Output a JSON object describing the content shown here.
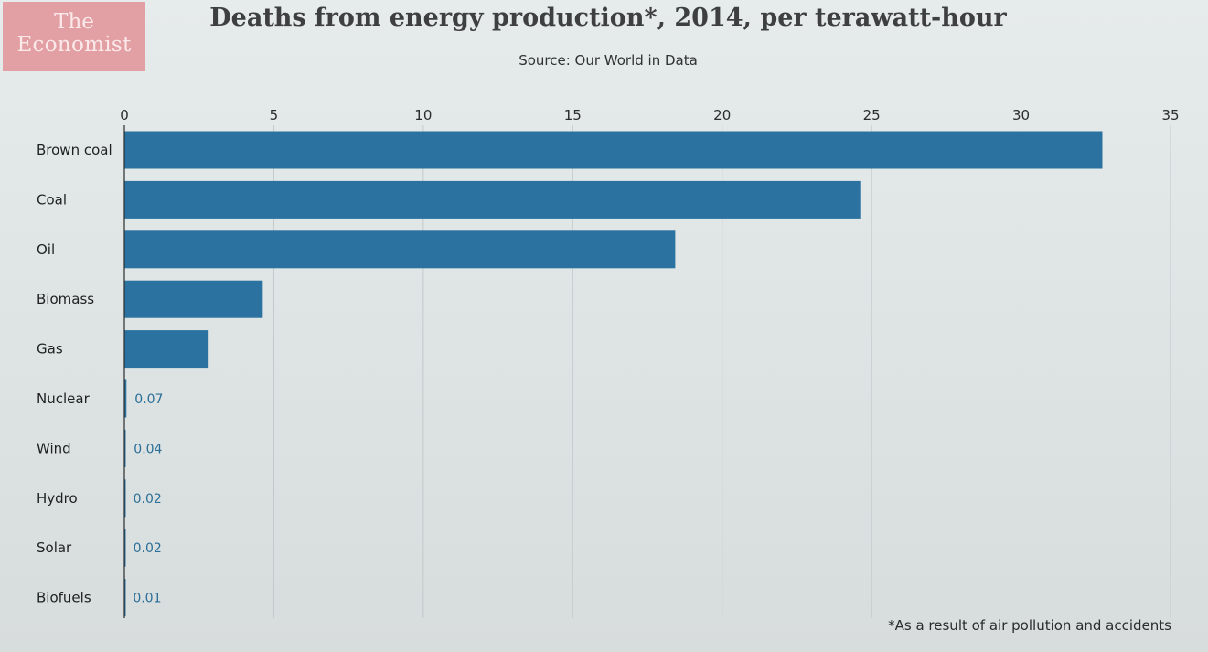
{
  "brand": {
    "line1": "The",
    "line2": "Economist",
    "color": "#e3a0a4"
  },
  "footnote": "*As a result of air pollution and accidents",
  "chart_data": {
    "type": "bar",
    "orientation": "horizontal",
    "title": "Deaths from energy production*, 2014, per terawatt-hour",
    "subtitle": "Source: Our World in Data",
    "xlabel": "",
    "ylabel": "",
    "xlim": [
      0,
      35
    ],
    "x_ticks": [
      0,
      5,
      10,
      15,
      20,
      25,
      30,
      35
    ],
    "x_axis_position": "top",
    "grid": true,
    "bar_color": "#2b72a0",
    "categories": [
      "Brown coal",
      "Coal",
      "Oil",
      "Biomass",
      "Gas",
      "Nuclear",
      "Wind",
      "Hydro",
      "Solar",
      "Biofuels"
    ],
    "values": [
      32.72,
      24.62,
      18.43,
      4.63,
      2.82,
      0.07,
      0.04,
      0.02,
      0.02,
      0.01
    ],
    "data_labels": [
      {
        "category": "Nuclear",
        "text": "0.07"
      },
      {
        "category": "Wind",
        "text": "0.04"
      },
      {
        "category": "Hydro",
        "text": "0.02"
      },
      {
        "category": "Solar",
        "text": "0.02"
      },
      {
        "category": "Biofuels",
        "text": "0.01"
      }
    ]
  }
}
